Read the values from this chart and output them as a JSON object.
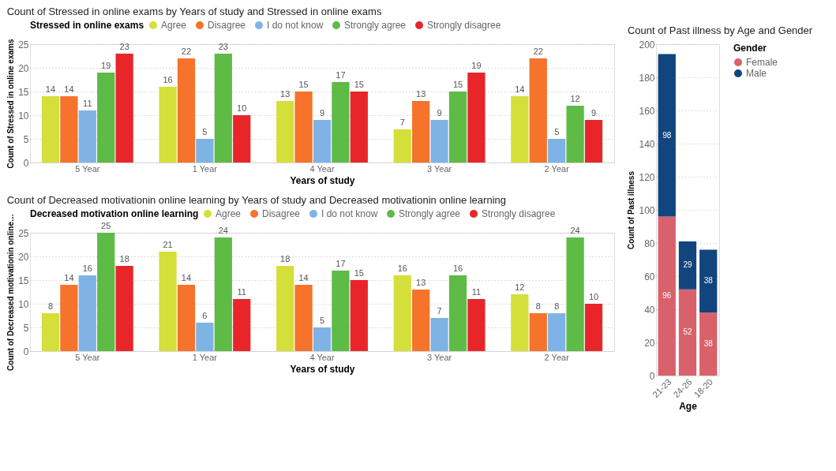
{
  "chart_data": [
    {
      "type": "bar",
      "title": "Count of Stressed in online exams by Years of study and Stressed in online exams",
      "xlabel": "Years of study",
      "ylabel": "Count of Stressed in online exams",
      "legend_title": "Stressed in online exams",
      "legend": "top",
      "grid": "y",
      "data_labels": true,
      "ylim": [
        0,
        25
      ],
      "yticks": [
        0,
        5,
        10,
        15,
        20,
        25
      ],
      "categories": [
        "5 Year",
        "1 Year",
        "4 Year",
        "3 Year",
        "2 Year"
      ],
      "series": [
        {
          "name": "Agree",
          "color": "#d4df3a",
          "values": [
            14,
            16,
            13,
            7,
            14
          ]
        },
        {
          "name": "Disagree",
          "color": "#f5732a",
          "values": [
            14,
            22,
            15,
            13,
            22
          ]
        },
        {
          "name": "I do not know",
          "color": "#7fb3e6",
          "values": [
            11,
            5,
            9,
            9,
            5
          ]
        },
        {
          "name": "Strongly agree",
          "color": "#5dbb46",
          "values": [
            19,
            23,
            17,
            15,
            12
          ]
        },
        {
          "name": "Strongly disagree",
          "color": "#e8262a",
          "values": [
            23,
            10,
            15,
            19,
            9
          ]
        }
      ]
    },
    {
      "type": "bar",
      "title": "Count of Decreased motivationin online learning by Years of study and Decreased motivationin online learning",
      "xlabel": "Years of study",
      "ylabel": "Count of Decreased motivationin online…",
      "legend_title": "Decreased motivation online learning",
      "legend": "top",
      "grid": "y",
      "data_labels": true,
      "ylim": [
        0,
        25
      ],
      "yticks": [
        0,
        5,
        10,
        15,
        20,
        25
      ],
      "categories": [
        "5 Year",
        "1 Year",
        "4 Year",
        "3 Year",
        "2 Year"
      ],
      "series": [
        {
          "name": "Agree",
          "color": "#d4df3a",
          "values": [
            8,
            21,
            18,
            16,
            12
          ]
        },
        {
          "name": "Disagree",
          "color": "#f5732a",
          "values": [
            14,
            14,
            14,
            13,
            8
          ]
        },
        {
          "name": "I do not know",
          "color": "#7fb3e6",
          "values": [
            16,
            6,
            5,
            7,
            8
          ]
        },
        {
          "name": "Strongly agree",
          "color": "#5dbb46",
          "values": [
            25,
            24,
            17,
            16,
            24
          ]
        },
        {
          "name": "Strongly disagree",
          "color": "#e8262a",
          "values": [
            18,
            11,
            15,
            11,
            10
          ]
        }
      ]
    },
    {
      "type": "bar",
      "stacked": true,
      "title": "Count of Past illness by Age and Gender",
      "xlabel": "Age",
      "ylabel": "Count of Past illness",
      "legend_title": "Gender",
      "legend": "right",
      "grid": "y",
      "data_labels": true,
      "ylim": [
        0,
        200
      ],
      "yticks": [
        0,
        20,
        40,
        60,
        80,
        100,
        120,
        140,
        160,
        180,
        200
      ],
      "categories": [
        "21-23",
        "24-26",
        "18-20"
      ],
      "series": [
        {
          "name": "Female",
          "color": "#d9616b",
          "values": [
            96,
            52,
            38
          ]
        },
        {
          "name": "Male",
          "color": "#12457e",
          "values": [
            98,
            29,
            38
          ]
        }
      ]
    }
  ]
}
